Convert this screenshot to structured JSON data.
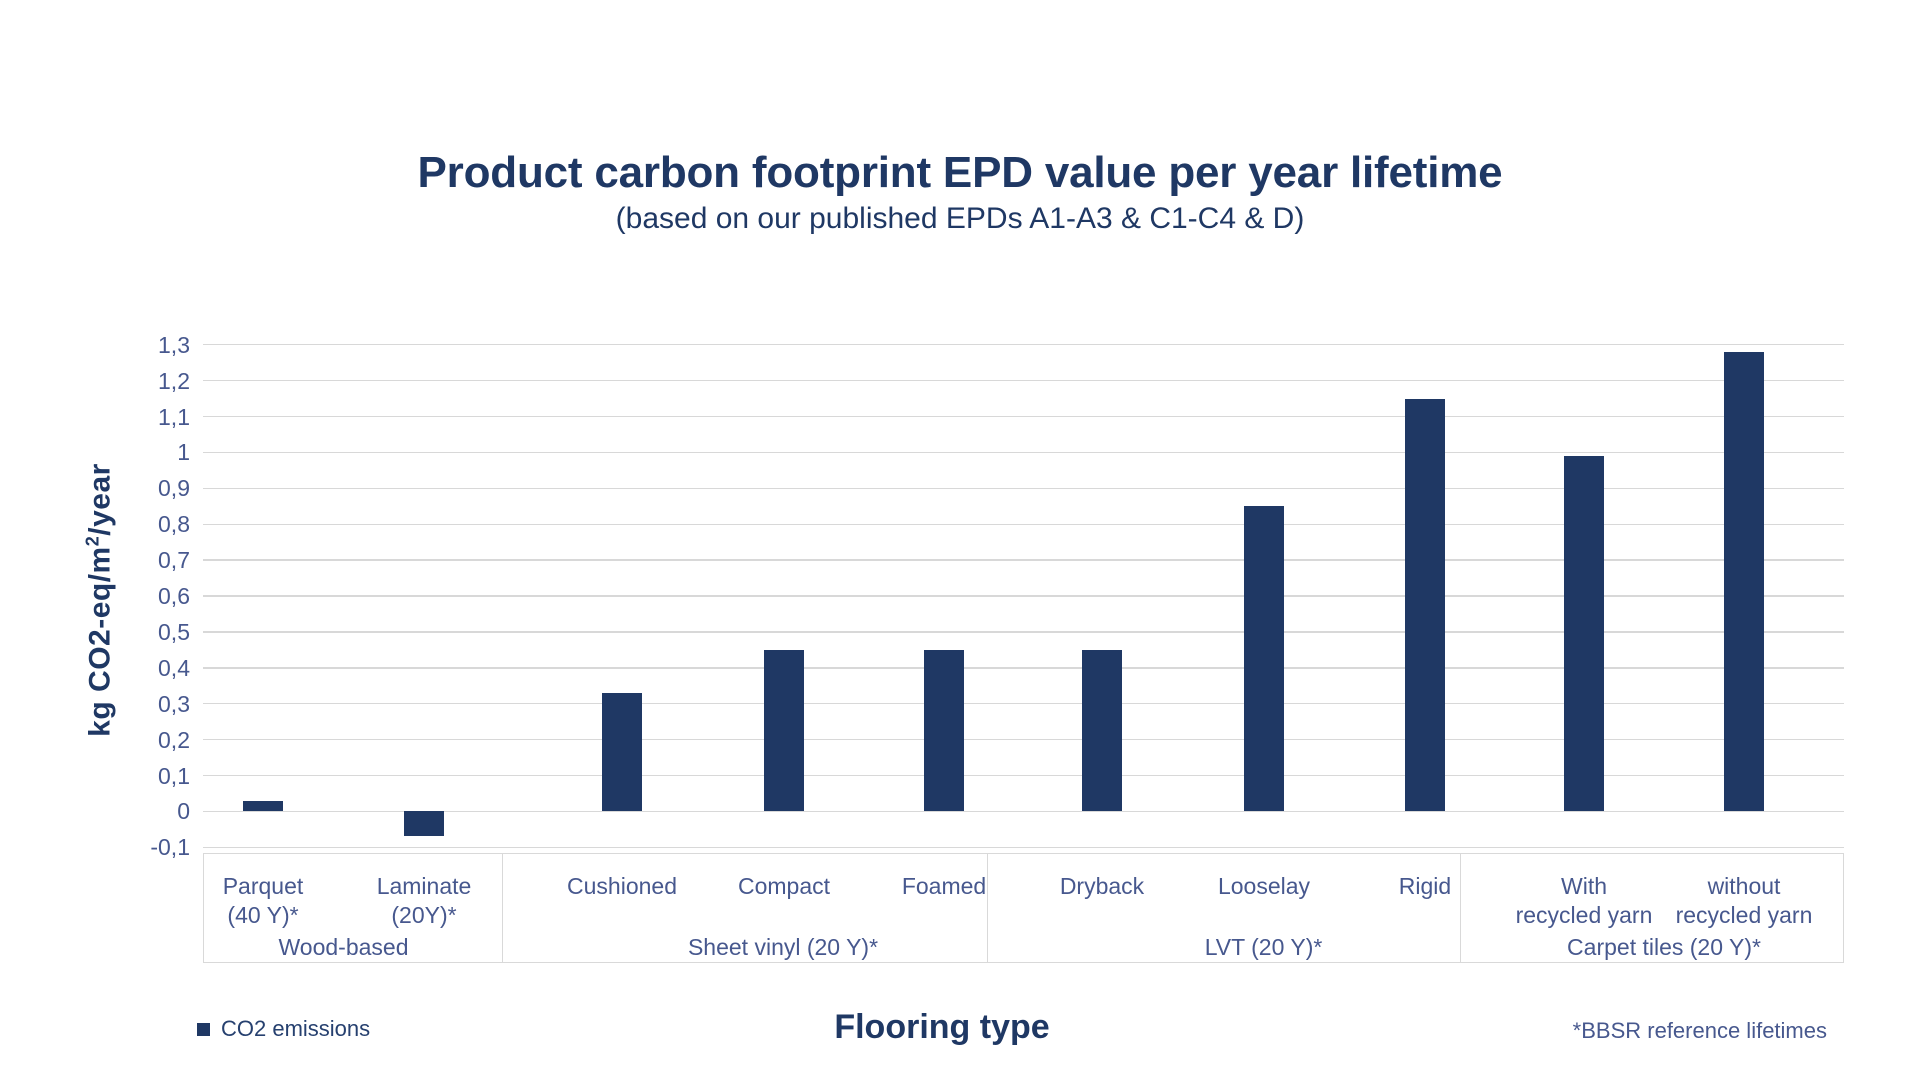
{
  "header": {
    "title": "Product carbon footprint EPD value per year lifetime",
    "subtitle": "(based on our published EPDs A1-A3 & C1-C4 & D)"
  },
  "chart_data": {
    "type": "bar",
    "title": "Product carbon footprint EPD value per year lifetime",
    "subtitle": "(based on our published EPDs A1-A3 & C1-C4 & D)",
    "xlabel": "Flooring type",
    "ylabel": "kg CO2-eq/m2/year",
    "ylabel_parts": {
      "prefix": "kg CO2-eq/m",
      "sup": "2",
      "suffix": "/year"
    },
    "ylim": [
      -0.1,
      1.3
    ],
    "grid": true,
    "decimal_separator": ",",
    "y_ticks": [
      "1,3",
      "1,2",
      "1,1",
      "1",
      "0,9",
      "0,8",
      "0,7",
      "0,6",
      "0,5",
      "0,4",
      "0,3",
      "0,2",
      "0,1",
      "0",
      "-0,1"
    ],
    "legend_label": "CO2 emissions",
    "legend_position": "bottom-left",
    "footnote": "*BBSR reference lifetimes",
    "groups": [
      {
        "label": "Wood-based",
        "categories": [
          [
            "Parquet",
            "(40 Y)*"
          ],
          [
            "Laminate",
            "(20Y)*"
          ]
        ],
        "values": [
          0.03,
          -0.07
        ]
      },
      {
        "label": "Sheet vinyl (20 Y)*",
        "categories": [
          [
            "Cushioned"
          ],
          [
            "Compact"
          ],
          [
            "Foamed"
          ]
        ],
        "values": [
          0.33,
          0.45,
          0.45
        ]
      },
      {
        "label": "LVT (20 Y)*",
        "categories": [
          [
            "Dryback"
          ],
          [
            "Looselay"
          ],
          [
            "Rigid"
          ]
        ],
        "values": [
          0.45,
          0.85,
          1.15
        ]
      },
      {
        "label": "Carpet tiles (20 Y)*",
        "categories": [
          [
            "With",
            "recycled yarn"
          ],
          [
            "without",
            "recycled yarn"
          ]
        ],
        "values": [
          0.99,
          1.28
        ]
      }
    ],
    "series": [
      {
        "name": "CO2 emissions",
        "values": [
          0.03,
          -0.07,
          0.33,
          0.45,
          0.45,
          0.45,
          0.85,
          1.15,
          0.99,
          1.28
        ]
      }
    ]
  },
  "colors": {
    "bar": "#1f3864",
    "title_text": "#1f3864",
    "axis_text": "#47588e",
    "gridline": "#d8d8d8",
    "box_border": "#d9d9d9"
  }
}
